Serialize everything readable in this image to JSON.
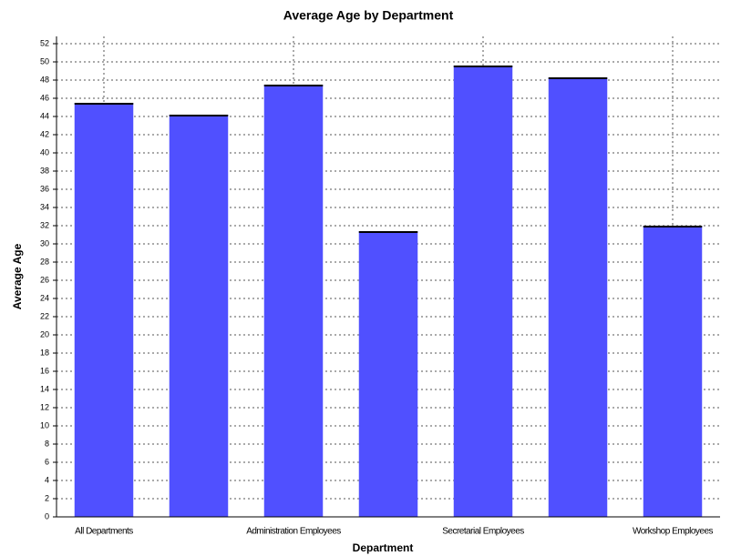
{
  "chart_data": {
    "type": "bar",
    "title": "Average Age by Department",
    "x_label": "Department",
    "y_label": "Average Age",
    "categories": [
      "All Departments",
      null,
      "Administration Employees",
      null,
      "Secretarial Employees",
      null,
      "Workshop Employees"
    ],
    "values": [
      45.5,
      44.2,
      47.5,
      31.4,
      49.6,
      48.3,
      32.0
    ],
    "color": "#5050ff",
    "ylim": [
      0,
      52
    ],
    "yticks": [
      0,
      2,
      4,
      6,
      8,
      10,
      12,
      14,
      16,
      18,
      20,
      22,
      24,
      26,
      28,
      30,
      32,
      34,
      36,
      38,
      40,
      42,
      44,
      46,
      48,
      50,
      52
    ],
    "grid": true
  }
}
